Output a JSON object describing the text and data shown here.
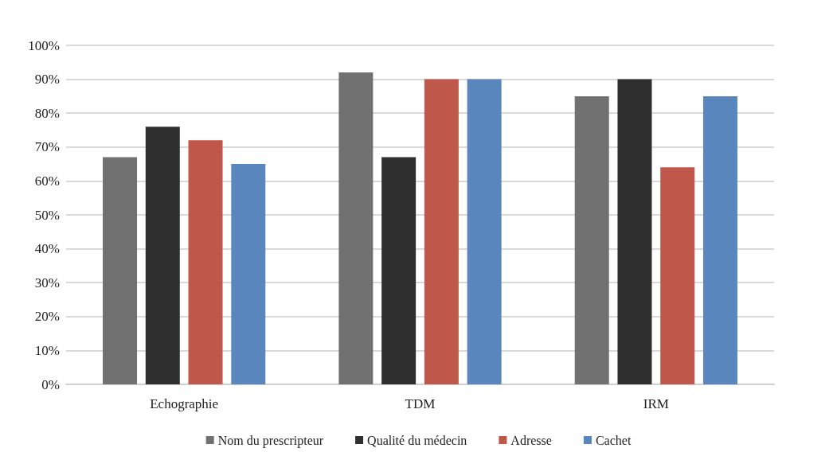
{
  "chart_data": {
    "type": "bar",
    "categories": [
      "Echographie",
      "TDM",
      "IRM"
    ],
    "series": [
      {
        "name": "Nom du prescripteur",
        "color": "#717171",
        "values": [
          67,
          92,
          85
        ]
      },
      {
        "name": "Qualité du médecin",
        "color": "#2f2f2f",
        "values": [
          76,
          67,
          90
        ]
      },
      {
        "name": "Adresse",
        "color": "#bf574a",
        "values": [
          72,
          90,
          64
        ]
      },
      {
        "name": "Cachet",
        "color": "#5886bd",
        "values": [
          65,
          90,
          85
        ]
      }
    ],
    "ylim": [
      0,
      100
    ],
    "yticks": [
      {
        "value": 0,
        "label": "0%"
      },
      {
        "value": 10,
        "label": "10%"
      },
      {
        "value": 20,
        "label": "20%"
      },
      {
        "value": 30,
        "label": "30%"
      },
      {
        "value": 40,
        "label": "40%"
      },
      {
        "value": 50,
        "label": "50%"
      },
      {
        "value": 60,
        "label": "60%"
      },
      {
        "value": 70,
        "label": "70%"
      },
      {
        "value": 80,
        "label": "80%"
      },
      {
        "value": 90,
        "label": "90%"
      },
      {
        "value": 100,
        "label": "100%"
      }
    ],
    "grid": "y",
    "legend": "bottom"
  }
}
